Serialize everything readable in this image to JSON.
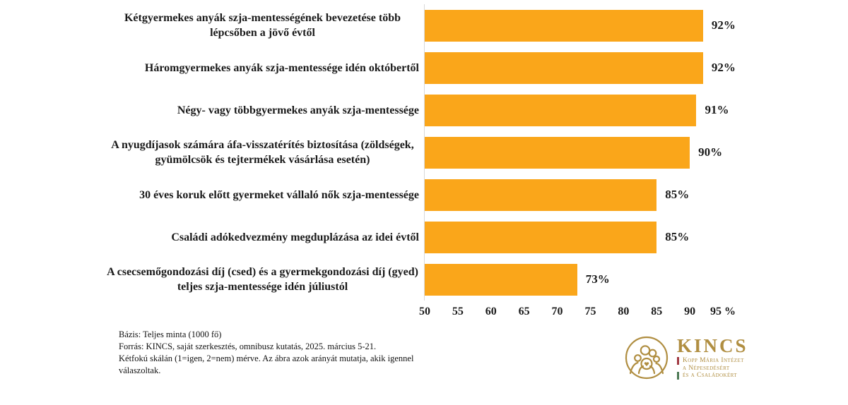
{
  "chart_data": {
    "type": "bar",
    "orientation": "horizontal",
    "title": "",
    "xlabel": "",
    "ylabel": "",
    "categories": [
      "Kétgyermekes anyák szja-mentességének bevezetése több lépcsőben a jövő évtől",
      "Háromgyermekes anyák szja-mentessége idén októbertől",
      "Négy- vagy többgyermekes anyák szja-mentessége",
      "A nyugdíjasok számára áfa-visszatérítés biztosítása (zöldségek, gyümölcsök és tejtermékek vásárlása esetén)",
      "30 éves koruk előtt gyermeket vállaló nők szja-mentessége",
      "Családi adókedvezmény megduplázása az idei évtől",
      "A csecsemőgondozási díj (csed) és a gyermekgondozási díj (gyed) teljes szja-mentessége idén júliustól"
    ],
    "values": [
      92,
      92,
      91,
      90,
      85,
      85,
      73
    ],
    "value_labels": [
      "92%",
      "92%",
      "91%",
      "90%",
      "85%",
      "85%",
      "73%"
    ],
    "xlim": [
      50,
      95
    ],
    "x_ticks": [
      50,
      55,
      60,
      65,
      70,
      75,
      80,
      85,
      90,
      95
    ],
    "x_tick_labels": [
      "50",
      "55",
      "60",
      "65",
      "70",
      "75",
      "80",
      "85",
      "90",
      "95 %"
    ],
    "bar_color": "#FAA61A",
    "grid": false,
    "legend": null
  },
  "notes": {
    "basis": "Bázis: Teljes minta (1000 fő)",
    "source": "Forrás: KINCS, saját szerkesztés, omnibusz kutatás, 2025. március 5-21.",
    "method": "Kétfokú skálán (1=igen, 2=nem) mérve. Az ábra azok arányát mutatja, akik igennel válaszoltak."
  },
  "logo": {
    "wordmark": "KINCS",
    "subline1": "Kopp Mária Intézet",
    "subline2": "a Népesedésért",
    "subline3": "és a Családokért",
    "gold": "#B08E41",
    "flag_red": "#A13A42",
    "flag_white": "#FFFFFF",
    "flag_green": "#4D7A55"
  }
}
